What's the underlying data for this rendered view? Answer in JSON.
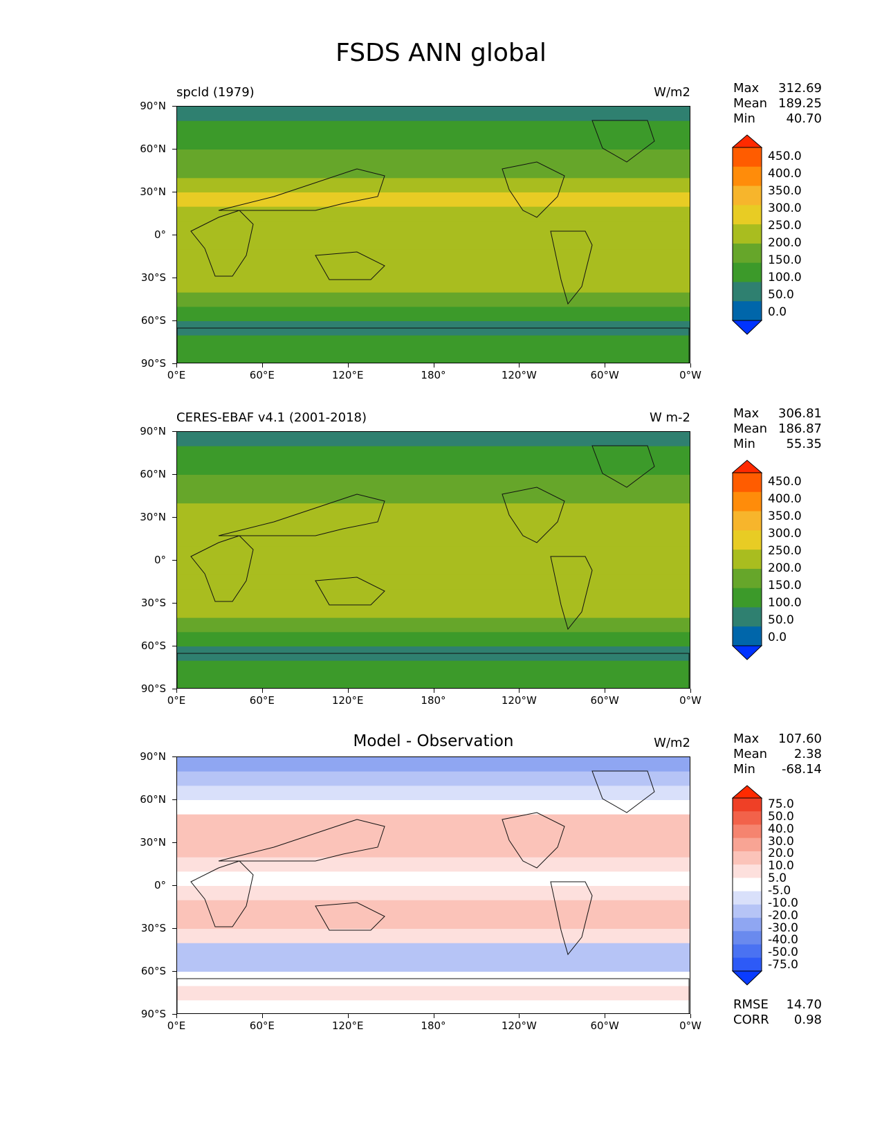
{
  "figure_title": "FSDS ANN global",
  "y_labels": [
    "90°N",
    "60°N",
    "30°N",
    "0°",
    "30°S",
    "60°S",
    "90°S"
  ],
  "x_labels": [
    "0°E",
    "60°E",
    "120°E",
    "180°",
    "120°W",
    "60°W",
    "0°W"
  ],
  "panels": [
    {
      "title": "spcld (1979)",
      "title_style": "left",
      "units": "W/m2",
      "stats": {
        "max_label": "Max",
        "max": "312.69",
        "mean_label": "Mean",
        "mean": "189.25",
        "min_label": "Min",
        "min": "40.70"
      },
      "colorbar_labels": [
        "450.0",
        "400.0",
        "350.0",
        "300.0",
        "250.0",
        "200.0",
        "150.0",
        "100.0",
        "50.0",
        "0.0"
      ]
    },
    {
      "title": "CERES-EBAF v4.1 (2001-2018)",
      "title_style": "left",
      "units": "W m-2",
      "stats": {
        "max_label": "Max",
        "max": "306.81",
        "mean_label": "Mean",
        "mean": "186.87",
        "min_label": "Min",
        "min": "55.35"
      },
      "colorbar_labels": [
        "450.0",
        "400.0",
        "350.0",
        "300.0",
        "250.0",
        "200.0",
        "150.0",
        "100.0",
        "50.0",
        "0.0"
      ]
    },
    {
      "title": "Model - Observation",
      "title_style": "center",
      "units": "W/m2",
      "stats": {
        "max_label": "Max",
        "max": "107.60",
        "mean_label": "Mean",
        "mean": "2.38",
        "min_label": "Min",
        "min": "-68.14"
      },
      "colorbar_labels": [
        "75.0",
        "50.0",
        "40.0",
        "30.0",
        "20.0",
        "10.0",
        "5.0",
        "-5.0",
        "-10.0",
        "-20.0",
        "-30.0",
        "-40.0",
        "-50.0",
        "-75.0"
      ],
      "footer": {
        "rmse_label": "RMSE",
        "rmse": "14.70",
        "corr_label": "CORR",
        "corr": "0.98"
      }
    }
  ],
  "colors": {
    "abs_scale": [
      "#0033ff",
      "#0066aa",
      "#2f8070",
      "#3c9a2a",
      "#66a62a",
      "#a9bd1f",
      "#e8cc24",
      "#f7b52c",
      "#ff8c0a",
      "#ff5c00",
      "#ff2a00"
    ],
    "diff_scale": [
      "#0a3cff",
      "#2d5af7",
      "#4a72f2",
      "#6a8aee",
      "#8fa6f2",
      "#b6c4f6",
      "#d9e0fa",
      "#ffffff",
      "#fde0dd",
      "#fbc3b9",
      "#f8a494",
      "#f5846f",
      "#f2624a",
      "#ef4026",
      "#ff2a00"
    ]
  },
  "chart_data": [
    {
      "type": "heatmap",
      "title": "spcld (1979)",
      "units": "W/m2",
      "x_range": [
        0,
        360
      ],
      "y_range": [
        -90,
        90
      ],
      "zonal_profile_lat": [
        85,
        75,
        65,
        55,
        45,
        35,
        25,
        15,
        5,
        -5,
        -15,
        -25,
        -35,
        -45,
        -55,
        -65,
        -75,
        -85
      ],
      "zonal_profile_value": [
        90,
        110,
        120,
        150,
        180,
        220,
        250,
        240,
        230,
        235,
        245,
        240,
        205,
        160,
        110,
        90,
        130,
        120
      ],
      "stats": {
        "max": 312.69,
        "mean": 189.25,
        "min": 40.7
      },
      "levels": [
        0,
        50,
        100,
        150,
        200,
        250,
        300,
        350,
        400,
        450
      ]
    },
    {
      "type": "heatmap",
      "title": "CERES-EBAF v4.1 (2001-2018)",
      "units": "W m-2",
      "x_range": [
        0,
        360
      ],
      "y_range": [
        -90,
        90
      ],
      "zonal_profile_lat": [
        85,
        75,
        65,
        55,
        45,
        35,
        25,
        15,
        5,
        -5,
        -15,
        -25,
        -35,
        -45,
        -55,
        -65,
        -75,
        -85
      ],
      "zonal_profile_value": [
        90,
        115,
        130,
        150,
        185,
        225,
        240,
        235,
        225,
        230,
        240,
        235,
        200,
        160,
        120,
        95,
        140,
        130
      ],
      "stats": {
        "max": 306.81,
        "mean": 186.87,
        "min": 55.35
      },
      "levels": [
        0,
        50,
        100,
        150,
        200,
        250,
        300,
        350,
        400,
        450
      ]
    },
    {
      "type": "heatmap",
      "title": "Model - Observation",
      "units": "W/m2",
      "x_range": [
        0,
        360
      ],
      "y_range": [
        -90,
        90
      ],
      "zonal_profile_lat": [
        85,
        75,
        65,
        55,
        45,
        35,
        25,
        15,
        5,
        -5,
        -15,
        -25,
        -35,
        -45,
        -55,
        -65,
        -75,
        -85
      ],
      "zonal_profile_value": [
        -25,
        -15,
        -10,
        -5,
        10,
        18,
        12,
        6,
        2,
        8,
        10,
        12,
        8,
        -15,
        -12,
        2,
        5,
        3
      ],
      "stats": {
        "max": 107.6,
        "mean": 2.38,
        "min": -68.14,
        "rmse": 14.7,
        "corr": 0.98
      },
      "levels": [
        -75,
        -50,
        -40,
        -30,
        -20,
        -10,
        -5,
        5,
        10,
        20,
        30,
        40,
        50,
        75
      ]
    }
  ]
}
